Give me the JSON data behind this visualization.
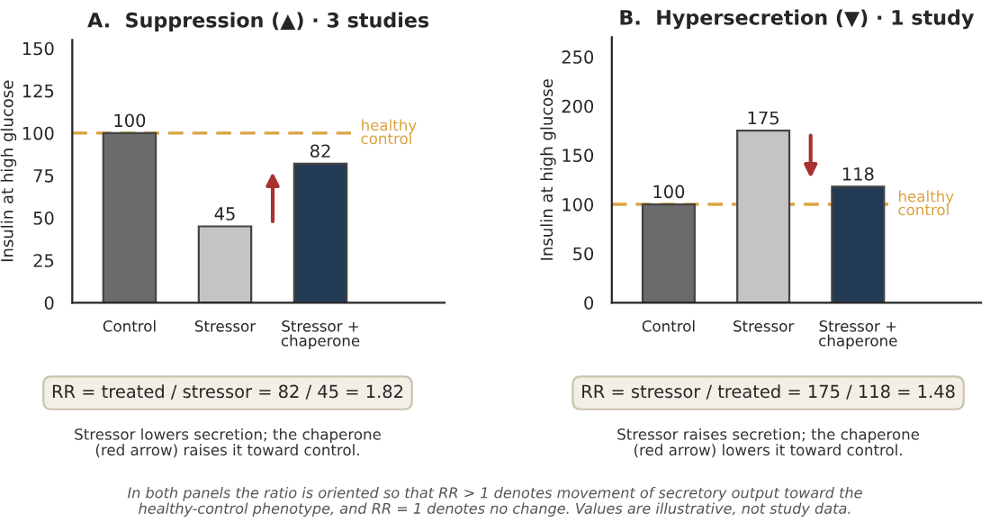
{
  "chart_data": [
    {
      "type": "bar",
      "title": "A.  Suppression (▲) · 3 studies",
      "ylabel": "Insulin at high glucose",
      "categories": [
        "Control",
        "Stressor",
        "Stressor +\nchaperone"
      ],
      "values": [
        100,
        45,
        82
      ],
      "colors": [
        "#6b6b6b",
        "#c4c4c4",
        "#1b3a5c"
      ],
      "ylim": [
        0,
        155
      ],
      "yticks": [
        0,
        25,
        50,
        75,
        100,
        125,
        150
      ],
      "data_labels": true,
      "grid": false,
      "legend": false,
      "ref_lines": [
        {
          "axis": "y",
          "value": 100,
          "label": "healthy\ncontrol",
          "color": "#d9a441",
          "line_style": "dashed"
        }
      ],
      "annotations": [
        "RR = treated / stressor = 82 / 45 = 1.82",
        "Stressor lowers secretion; the chaperone\n(red arrow) raises it toward control.",
        "In both panels the ratio is oriented so that RR > 1 denotes movement of secretory output toward the\nhealthy-control phenotype, and RR = 1 denotes no change. Values are illustrative, not study data."
      ]
    },
    {
      "type": "bar",
      "title": "B.  Hypersecretion (▼) · 1 study",
      "ylabel": "Insulin at high glucose",
      "categories": [
        "Control",
        "Stressor",
        "Stressor +\nchaperone"
      ],
      "values": [
        100,
        175,
        118
      ],
      "colors": [
        "#6b6b6b",
        "#c4c4c4",
        "#1b3a5c"
      ],
      "ylim": [
        0,
        270
      ],
      "yticks": [
        0,
        50,
        100,
        150,
        200,
        250
      ],
      "data_labels": true,
      "grid": false,
      "legend": false,
      "ref_lines": [
        {
          "axis": "y",
          "value": 100,
          "label": "healthy\ncontrol",
          "color": "#d9a441",
          "line_style": "dashed"
        }
      ],
      "annotations": [
        "RR = stressor / treated = 175 / 118 = 1.48",
        "Stressor raises secretion; the chaperone\n(red arrow) lowers it toward control."
      ]
    }
  ]
}
